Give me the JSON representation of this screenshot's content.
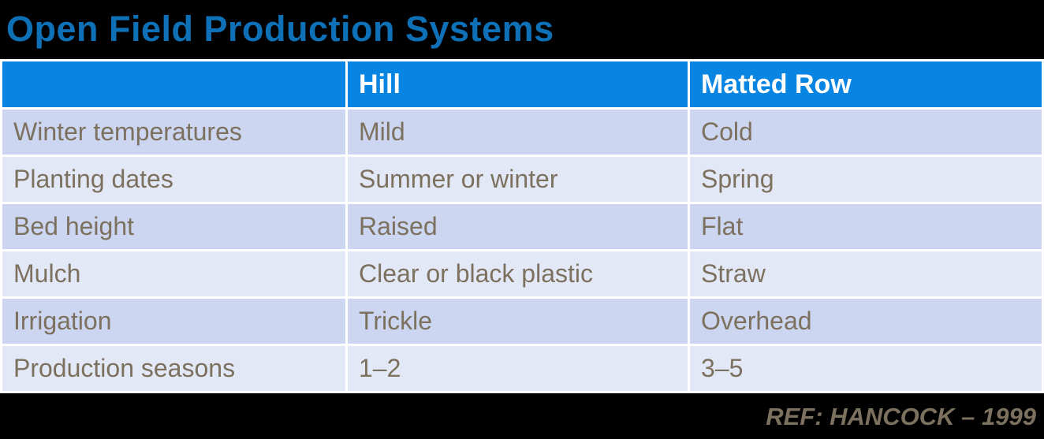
{
  "title": "Open Field Production Systems",
  "table": {
    "columns": [
      "",
      "Hill",
      "Matted Row"
    ],
    "rows": [
      {
        "label": "Winter temperatures",
        "hill": "Mild",
        "matted_row": "Cold"
      },
      {
        "label": "Planting dates",
        "hill": "Summer or winter",
        "matted_row": "Spring"
      },
      {
        "label": "Bed height",
        "hill": "Raised",
        "matted_row": "Flat"
      },
      {
        "label": "Mulch",
        "hill": "Clear or black plastic",
        "matted_row": "Straw"
      },
      {
        "label": "Irrigation",
        "hill": "Trickle",
        "matted_row": "Overhead"
      },
      {
        "label": "Production seasons",
        "hill": "1–2",
        "matted_row": "3–5"
      }
    ]
  },
  "footer": {
    "reference": "REF: HANCOCK – 1999"
  },
  "colors": {
    "background": "#000000",
    "title_blue": "#0E70B6",
    "header_blue": "#0884E3",
    "header_text": "#FFFFFF",
    "row_shade_dark": "#CCD6F0",
    "row_shade_light": "#E3E8F6",
    "body_text": "#7C705E",
    "divider": "#FFFFFF"
  }
}
